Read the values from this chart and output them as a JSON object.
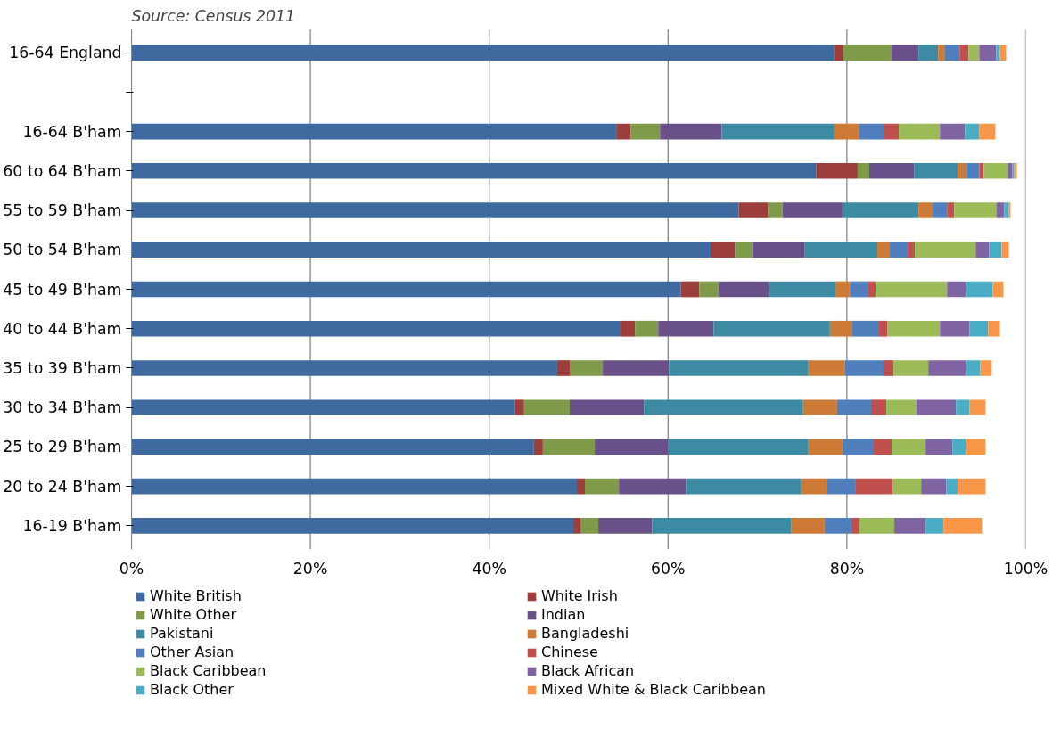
{
  "chart_data": {
    "type": "bar",
    "orientation": "horizontal",
    "stacked": true,
    "title": "Source:  Census 2011",
    "categories": [
      "16-64 England",
      null,
      "16-64 B'ham",
      "60 to 64 B'ham",
      "55 to 59 B'ham",
      "50 to 54 B'ham",
      "45 to 49 B'ham",
      "40 to 44 B'ham",
      "35 to 39 B'ham",
      "30 to 34 B'ham",
      "25 to 29 B'ham",
      "20 to 24 B'ham",
      "16-19 B'ham"
    ],
    "xlim": [
      0,
      100
    ],
    "xticks": [
      {
        "value": 0,
        "label": "0%"
      },
      {
        "value": 20,
        "label": "20%"
      },
      {
        "value": 40,
        "label": "40%"
      },
      {
        "value": 60,
        "label": "60%"
      },
      {
        "value": 80,
        "label": "80%"
      },
      {
        "value": 100,
        "label": "100%"
      }
    ],
    "grid": "x",
    "legend": "bottom",
    "series": [
      {
        "name": "White British",
        "color": "#3f6a9f",
        "values": [
          78.6,
          null,
          54.2,
          76.6,
          67.9,
          64.8,
          61.4,
          54.7,
          47.6,
          42.9,
          45.0,
          49.8,
          49.4
        ]
      },
      {
        "name": "White Irish",
        "color": "#9c3f3c",
        "values": [
          1.0,
          null,
          1.6,
          4.6,
          3.3,
          2.7,
          2.1,
          1.6,
          1.4,
          1.0,
          1.0,
          0.9,
          0.8
        ]
      },
      {
        "name": "White Other",
        "color": "#7f9a48",
        "values": [
          5.4,
          null,
          3.3,
          1.3,
          1.6,
          1.9,
          2.1,
          2.6,
          3.7,
          5.1,
          5.8,
          3.8,
          2.0
        ]
      },
      {
        "name": "Indian",
        "color": "#6a5088",
        "values": [
          3.0,
          null,
          6.9,
          5.0,
          6.7,
          5.9,
          5.7,
          6.2,
          7.4,
          8.3,
          8.2,
          7.5,
          6.0
        ]
      },
      {
        "name": "Pakistani",
        "color": "#3c8ba3",
        "values": [
          2.2,
          null,
          12.6,
          4.9,
          8.5,
          8.1,
          7.4,
          13.0,
          15.6,
          17.8,
          15.7,
          12.9,
          15.6
        ]
      },
      {
        "name": "Bangladeshi",
        "color": "#cc7a35",
        "values": [
          0.7,
          null,
          2.8,
          1.0,
          1.5,
          1.4,
          1.7,
          2.5,
          4.1,
          3.8,
          3.8,
          2.9,
          3.7
        ]
      },
      {
        "name": "Other Asian",
        "color": "#4f80bd",
        "values": [
          1.7,
          null,
          2.8,
          1.4,
          1.7,
          2.0,
          2.0,
          3.0,
          4.3,
          3.8,
          3.5,
          3.2,
          3.0
        ]
      },
      {
        "name": "Chinese",
        "color": "#c0504d",
        "values": [
          1.0,
          null,
          1.6,
          0.5,
          0.8,
          0.8,
          0.8,
          0.9,
          1.1,
          1.7,
          2.0,
          4.1,
          0.9
        ]
      },
      {
        "name": "Black Caribbean",
        "color": "#9bbb59",
        "values": [
          1.2,
          null,
          4.6,
          2.7,
          4.7,
          6.8,
          8.0,
          5.9,
          3.9,
          3.4,
          3.8,
          3.2,
          3.9
        ]
      },
      {
        "name": "Black African",
        "color": "#8064a2",
        "values": [
          1.9,
          null,
          2.8,
          0.5,
          0.9,
          1.5,
          2.1,
          3.3,
          4.2,
          4.4,
          3.0,
          2.8,
          3.5
        ]
      },
      {
        "name": "Black Other",
        "color": "#4bacc6",
        "values": [
          0.4,
          null,
          1.6,
          0.2,
          0.5,
          1.4,
          3.0,
          2.1,
          1.6,
          1.5,
          1.5,
          1.3,
          2.0
        ]
      },
      {
        "name": "Mixed White & Black Caribbean",
        "color": "#f79646",
        "values": [
          0.7,
          null,
          1.8,
          0.3,
          0.2,
          0.8,
          1.2,
          1.3,
          1.3,
          1.8,
          2.2,
          3.1,
          4.3
        ]
      }
    ]
  }
}
